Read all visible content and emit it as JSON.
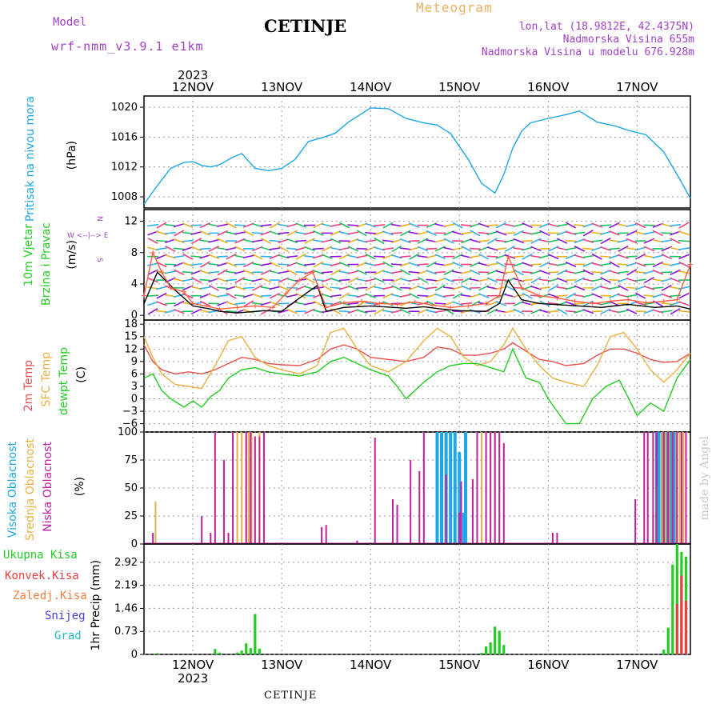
{
  "header": {
    "title": "CETINJE",
    "model_label": "Model",
    "model_version": "wrf-nmm_v3.9.1 e1km",
    "meteogram_label": "Meteogram",
    "lonlat": "lon,lat (18.9812E, 42.4375N)",
    "elevation": "Nadmorska Visina 655m",
    "model_elevation": "Nadmorska Visina u modelu 676.928m"
  },
  "footer": {
    "station": "CETINJE"
  },
  "credit": "made by Angel",
  "time_axis": {
    "year": "2023",
    "days": [
      "12NOV",
      "13NOV",
      "14NOV",
      "15NOV",
      "16NOV",
      "17NOV"
    ]
  },
  "colors": {
    "pressure": "#1ea6e6",
    "temp2m": "#e85050",
    "sfc_temp": "#e8b040",
    "dewpt": "#22cc22",
    "wind_speed": "#000000",
    "gust": "#ff6040",
    "high_cloud": "#1ea6e6",
    "mid_cloud": "#e8b040",
    "low_cloud": "#c020a0",
    "total_precip": "#22cc22",
    "conv_precip": "#e84040",
    "freezing_precip": "#f08040",
    "snow": "#4040e0",
    "graupel": "#20c0c0"
  },
  "panels": {
    "pressure": {
      "label": "Pritisak na nivou mora",
      "unit": "(hPa)"
    },
    "wind": {
      "label1": "10m Vjetar",
      "label2": "Brzina i Pravac",
      "unit": "(m/s)",
      "compass": {
        "n": "N",
        "w": "W",
        "e": "E",
        "s": "S",
        "line": "W <--|--> E"
      }
    },
    "temp": {
      "label1": "2m Temp",
      "label2": "SFC Temp",
      "label3": "dewpt Temp",
      "unit": "(C)"
    },
    "cloud": {
      "label1": "Visoka Oblacnost",
      "label2": "Srednja Oblacnost",
      "label3": "Niska Oblacnost",
      "unit": "(%)"
    },
    "precip": {
      "unit": "1hr Precip (mm)",
      "legend": [
        "Ukupna Kisa",
        "Konvek.Kisa",
        "Zaledj.Kisa",
        "Snijeg",
        "Grad"
      ]
    }
  },
  "chart_data": [
    {
      "type": "line",
      "name": "pressure",
      "x_unit": "days since 12NOV 00UTC",
      "xlim": [
        -0.55,
        5.6
      ],
      "ylim": [
        1006.5,
        1021.5
      ],
      "yticks": [
        1008,
        1012,
        1016,
        1020
      ],
      "series": [
        {
          "name": "",
          "x": [
            -0.55,
            -0.4,
            -0.25,
            -0.1,
            0.0,
            0.1,
            0.2,
            0.3,
            0.45,
            0.55,
            0.7,
            0.85,
            1.0,
            1.15,
            1.3,
            1.45,
            1.6,
            1.75,
            2.0,
            2.2,
            2.4,
            2.6,
            2.75,
            2.9,
            3.1,
            3.25,
            3.4,
            3.5,
            3.6,
            3.7,
            3.8,
            4.0,
            4.2,
            4.35,
            4.55,
            4.75,
            4.9,
            5.1,
            5.3,
            5.45,
            5.6
          ],
          "y": [
            1007.0,
            1009.5,
            1011.8,
            1012.6,
            1012.7,
            1012.2,
            1012.0,
            1012.3,
            1013.3,
            1013.8,
            1011.8,
            1011.5,
            1011.8,
            1013.0,
            1015.4,
            1015.9,
            1016.5,
            1018.0,
            1019.9,
            1019.8,
            1018.5,
            1017.9,
            1017.6,
            1016.5,
            1013.0,
            1009.8,
            1008.5,
            1011.0,
            1014.5,
            1016.8,
            1017.9,
            1018.5,
            1019.0,
            1019.5,
            1018.0,
            1017.5,
            1016.9,
            1016.3,
            1014.0,
            1011.0,
            1007.8
          ]
        }
      ]
    },
    {
      "type": "line",
      "name": "wind",
      "xlim": [
        -0.55,
        5.6
      ],
      "ylim": [
        -0.6,
        13.5
      ],
      "yticks": [
        0,
        4,
        8,
        12
      ],
      "series": [
        {
          "name": "",
          "x": [
            -0.55,
            -0.4,
            -0.2,
            0.0,
            0.2,
            0.3,
            0.5,
            0.8,
            1.0,
            1.2,
            1.4,
            1.5,
            1.7,
            2.0,
            2.4,
            2.6,
            2.8,
            3.0,
            3.3,
            3.45,
            3.55,
            3.7,
            3.9,
            4.2,
            4.6,
            4.9,
            5.2,
            5.45,
            5.6
          ],
          "y": [
            1.5,
            5.5,
            3.2,
            1.2,
            0.8,
            0.5,
            0.3,
            0.6,
            0.5,
            2.2,
            3.8,
            0.5,
            1.0,
            1.2,
            0.9,
            1.1,
            0.8,
            0.6,
            0.5,
            1.5,
            4.5,
            2.0,
            1.5,
            1.3,
            1.0,
            1.4,
            1.0,
            1.2,
            0.8
          ]
        },
        {
          "name": "",
          "x": [
            -0.55,
            -0.45,
            -0.35,
            -0.25,
            -0.1,
            0.0,
            0.15,
            0.3,
            0.5,
            0.7,
            0.9,
            1.05,
            1.2,
            1.35,
            1.5,
            1.7,
            1.9,
            2.1,
            2.3,
            2.5,
            2.7,
            2.9,
            3.1,
            3.3,
            3.45,
            3.55,
            3.7,
            3.9,
            4.1,
            4.3,
            4.5,
            4.7,
            4.9,
            5.1,
            5.3,
            5.45,
            5.6
          ],
          "y": [
            2.5,
            8.0,
            5.5,
            3.5,
            3.0,
            1.5,
            1.2,
            0.8,
            1.0,
            1.2,
            1.0,
            2.8,
            4.5,
            5.5,
            1.0,
            1.6,
            1.8,
            1.5,
            1.4,
            1.7,
            1.3,
            1.0,
            1.2,
            1.5,
            2.5,
            7.5,
            3.5,
            2.5,
            2.2,
            1.8,
            1.5,
            1.8,
            2.0,
            1.6,
            1.8,
            2.0,
            6.5
          ]
        }
      ]
    },
    {
      "type": "line",
      "name": "temperature",
      "xlim": [
        -0.55,
        5.6
      ],
      "ylim": [
        -8,
        19
      ],
      "yticks": [
        -6,
        -3,
        0,
        3,
        6,
        9,
        12,
        15,
        18
      ],
      "series": [
        {
          "name": "",
          "x": [
            -0.55,
            -0.45,
            -0.35,
            -0.2,
            -0.05,
            0.1,
            0.25,
            0.4,
            0.55,
            0.7,
            0.85,
            1.0,
            1.2,
            1.4,
            1.55,
            1.7,
            1.85,
            2.0,
            2.2,
            2.4,
            2.6,
            2.75,
            2.9,
            3.05,
            3.2,
            3.35,
            3.5,
            3.6,
            3.75,
            3.9,
            4.05,
            4.2,
            4.4,
            4.55,
            4.7,
            4.85,
            5.0,
            5.15,
            5.3,
            5.45,
            5.6
          ],
          "y": [
            13,
            9,
            7,
            6,
            6.5,
            6,
            7,
            8.5,
            10,
            9.5,
            8.5,
            8.2,
            8,
            9.5,
            12,
            13,
            12,
            10,
            9.5,
            9,
            10,
            12.5,
            12,
            10.5,
            10.5,
            11,
            12,
            13.5,
            11.5,
            9.5,
            9,
            8,
            8.5,
            10.5,
            12,
            12,
            11,
            9.5,
            8.8,
            9,
            11
          ]
        },
        {
          "name": "",
          "x": [
            -0.55,
            -0.45,
            -0.35,
            -0.2,
            -0.05,
            0.1,
            0.25,
            0.4,
            0.55,
            0.7,
            0.85,
            1.0,
            1.2,
            1.4,
            1.55,
            1.7,
            1.85,
            2.0,
            2.2,
            2.4,
            2.6,
            2.75,
            2.9,
            3.05,
            3.2,
            3.35,
            3.5,
            3.6,
            3.75,
            3.9,
            4.05,
            4.2,
            4.4,
            4.55,
            4.7,
            4.85,
            5.0,
            5.15,
            5.3,
            5.45,
            5.6
          ],
          "y": [
            15,
            10,
            6,
            3.5,
            3,
            2.5,
            8,
            14,
            15,
            10,
            8,
            7,
            6,
            8,
            16,
            17,
            12,
            8,
            6.5,
            9,
            14,
            17,
            15,
            10,
            8,
            9,
            13,
            17,
            12,
            8,
            5,
            4,
            3,
            8,
            15,
            16,
            12,
            7,
            4,
            7,
            11
          ]
        },
        {
          "name": "",
          "x": [
            -0.55,
            -0.45,
            -0.35,
            -0.25,
            -0.1,
            0.0,
            0.1,
            0.2,
            0.3,
            0.4,
            0.55,
            0.7,
            0.85,
            1.0,
            1.2,
            1.4,
            1.55,
            1.7,
            1.85,
            2.0,
            2.2,
            2.3,
            2.4,
            2.5,
            2.6,
            2.75,
            2.9,
            3.05,
            3.2,
            3.35,
            3.5,
            3.6,
            3.75,
            3.9,
            4.0,
            4.1,
            4.2,
            4.35,
            4.5,
            4.65,
            4.8,
            5.0,
            5.15,
            5.3,
            5.45,
            5.6
          ],
          "y": [
            5,
            6,
            2,
            0,
            -2,
            -0.5,
            -2,
            0.5,
            2,
            5,
            7,
            7.5,
            6.5,
            6,
            5.5,
            6.5,
            9,
            10,
            8.5,
            7,
            5.5,
            3,
            0,
            2,
            4,
            6.5,
            8,
            8.5,
            8.5,
            7.5,
            6.5,
            12,
            5,
            4,
            0,
            -3,
            -6,
            -6,
            0,
            3,
            4.5,
            -4,
            -1,
            -3,
            5,
            9.5
          ]
        }
      ]
    },
    {
      "type": "bar",
      "name": "cloud_cover",
      "xlim": [
        -0.55,
        5.6
      ],
      "ylim": [
        0,
        100
      ],
      "yticks": [
        0,
        25,
        50,
        75,
        100
      ],
      "series": [
        {
          "name": "",
          "x": [
            2.75,
            2.8,
            2.85,
            2.9,
            2.95,
            3.0,
            3.05,
            3.07,
            5.22,
            5.24,
            5.28,
            5.3,
            5.34,
            5.38,
            5.42
          ],
          "values": [
            100,
            100,
            100,
            100,
            100,
            82,
            28,
            100,
            100,
            100,
            100,
            100,
            100,
            100,
            100
          ]
        },
        {
          "name": "",
          "x": [
            -0.42,
            0.45,
            0.5,
            0.55,
            0.6,
            0.63,
            0.66,
            0.7,
            0.75,
            3.25,
            3.3,
            3.35,
            3.4,
            3.45,
            5.18,
            5.22,
            5.28,
            5.32,
            5.36,
            5.4,
            5.44,
            5.48,
            5.52
          ],
          "values": [
            38,
            96,
            100,
            100,
            100,
            100,
            100,
            96,
            100,
            100,
            100,
            100,
            100,
            100,
            28,
            50,
            100,
            100,
            100,
            100,
            100,
            100,
            100
          ]
        },
        {
          "name": "",
          "x": [
            -0.45,
            0.1,
            0.2,
            0.25,
            0.35,
            0.4,
            0.45,
            0.6,
            0.65,
            0.7,
            0.75,
            0.8,
            1.45,
            1.5,
            1.85,
            2.05,
            2.25,
            2.3,
            2.45,
            2.55,
            2.6,
            2.85,
            3.0,
            3.02,
            3.15,
            3.2,
            3.3,
            3.35,
            3.4,
            3.45,
            3.5,
            4.05,
            4.1,
            4.98,
            5.08,
            5.12,
            5.18,
            5.22,
            5.3,
            5.35,
            5.4,
            5.45,
            5.5,
            5.55
          ],
          "values": [
            10,
            25,
            10,
            100,
            75,
            10,
            100,
            100,
            100,
            96,
            96,
            100,
            15,
            17,
            3,
            95,
            40,
            35,
            75,
            65,
            100,
            62,
            28,
            56,
            58,
            100,
            100,
            100,
            100,
            100,
            90,
            10,
            10,
            40,
            100,
            100,
            100,
            100,
            100,
            100,
            100,
            100,
            100,
            100
          ]
        }
      ]
    },
    {
      "type": "bar",
      "name": "precipitation",
      "xlim": [
        -0.55,
        5.6
      ],
      "ylim": [
        0,
        3.5
      ],
      "yticks": [
        0,
        0.73,
        1.46,
        2.19,
        2.92
      ],
      "series": [
        {
          "name": "",
          "x": [
            -0.4,
            0.25,
            0.3,
            0.5,
            0.55,
            0.6,
            0.65,
            0.7,
            0.75,
            3.25,
            3.3,
            3.35,
            3.4,
            3.45,
            3.5,
            5.3,
            5.35,
            5.4,
            5.45,
            5.5,
            5.55
          ],
          "values": [
            0.04,
            0.17,
            0.06,
            0.06,
            0.12,
            0.35,
            0.2,
            1.28,
            0.18,
            0.05,
            0.25,
            0.38,
            0.88,
            0.75,
            0.3,
            0.15,
            0.85,
            2.85,
            3.5,
            3.25,
            3.1
          ]
        },
        {
          "name": "",
          "x": [
            5.45,
            5.5,
            5.55
          ],
          "values": [
            1.6,
            2.5,
            1.7
          ]
        }
      ]
    }
  ]
}
